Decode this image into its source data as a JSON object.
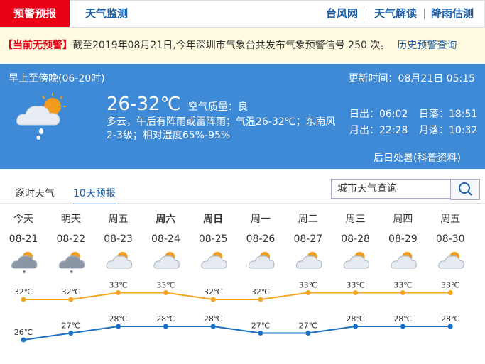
{
  "nav": {
    "tabs": [
      "预警预报",
      "天气监测"
    ],
    "links": [
      "台风网",
      "天气解读",
      "降雨估测"
    ]
  },
  "alert": {
    "status": "【当前无预警】",
    "text": "截至2019年08月21日,今年深圳市气象台共发布气象预警信号 250 次。",
    "link": "历史预警查询"
  },
  "today": {
    "period": "早上至傍晚(06-20时)",
    "updated": "更新时间：08月21日 05:15",
    "temperature": "26-32℃",
    "air_quality": "空气质量：良",
    "description": "多云，午后有阵雨或雷阵雨；气温26-32℃；东南风2-3级；相对湿度65%-95%",
    "sunrise": "日出：06:02",
    "sunset": "日落：18:51",
    "moonrise": "月出：22:28",
    "moonset": "月落：10:32",
    "note": "后日处暑(科普资料)"
  },
  "forecast_tabs": [
    "逐时天气",
    "10天预报"
  ],
  "search_placeholder": "城市天气查询",
  "forecast": {
    "days": [
      "今天",
      "明天",
      "周五",
      "周六",
      "周日",
      "周一",
      "周二",
      "周三",
      "周四",
      "周五"
    ],
    "dates": [
      "08-21",
      "08-22",
      "08-23",
      "08-24",
      "08-25",
      "08-26",
      "08-27",
      "08-28",
      "08-29",
      "08-30"
    ],
    "high": {
      "values": [
        32,
        32,
        33,
        33,
        32,
        32,
        33,
        33,
        33,
        33
      ],
      "value_labels": [
        "32℃",
        "32℃",
        "33℃",
        "33℃",
        "32℃",
        "32℃",
        "33℃",
        "33℃",
        "33℃",
        "33℃"
      ],
      "color": "#f5a623"
    },
    "low": {
      "values": [
        26,
        27,
        28,
        28,
        28,
        27,
        27,
        28,
        28,
        28
      ],
      "value_labels": [
        "26℃",
        "27℃",
        "28℃",
        "28℃",
        "28℃",
        "27℃",
        "27℃",
        "28℃",
        "28℃",
        "28℃"
      ],
      "color": "#1a6fc4"
    }
  }
}
